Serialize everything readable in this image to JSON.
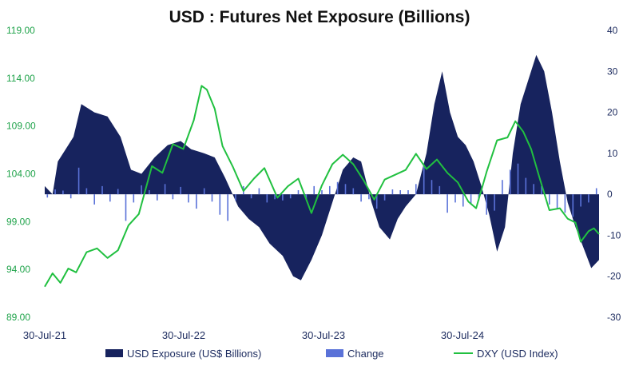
{
  "chart_data": {
    "type": "bar",
    "title": "USD : Futures Net Exposure (Billions)",
    "x_ticks": [
      "30-Jul-21",
      "30-Jul-22",
      "30-Jul-23",
      "30-Jul-24"
    ],
    "y_left": {
      "ticks": [
        "119.00",
        "114.00",
        "109.00",
        "104.00",
        "99.00",
        "94.00",
        "89.00"
      ],
      "ylim": [
        89,
        119
      ]
    },
    "y_right": {
      "ticks": [
        "40",
        "30",
        "20",
        "10",
        "0",
        "-10",
        "-20",
        "-30"
      ],
      "ylim": [
        -30,
        40
      ]
    },
    "x_range": [
      "2021-07-30",
      "2025-08-22"
    ],
    "colors": {
      "exposure": "#17235e",
      "change": "#5a72d8",
      "dxy": "#21c040"
    },
    "series": [
      {
        "name": "USD Exposure (US$ Billions)",
        "axis": "right",
        "kind": "area",
        "points": [
          [
            "2021-07-30",
            2
          ],
          [
            "2021-08-20",
            0
          ],
          [
            "2021-09-03",
            8
          ],
          [
            "2021-09-24",
            11
          ],
          [
            "2021-10-15",
            14
          ],
          [
            "2021-11-05",
            22
          ],
          [
            "2021-12-10",
            20
          ],
          [
            "2022-01-14",
            19
          ],
          [
            "2022-02-18",
            14
          ],
          [
            "2022-03-18",
            6
          ],
          [
            "2022-04-15",
            5
          ],
          [
            "2022-05-20",
            9
          ],
          [
            "2022-06-24",
            12
          ],
          [
            "2022-07-29",
            13
          ],
          [
            "2022-08-26",
            11
          ],
          [
            "2022-09-30",
            10
          ],
          [
            "2022-10-28",
            9
          ],
          [
            "2022-11-25",
            4
          ],
          [
            "2022-12-30",
            -3
          ],
          [
            "2023-01-27",
            -6
          ],
          [
            "2023-02-24",
            -8
          ],
          [
            "2023-03-24",
            -12
          ],
          [
            "2023-04-28",
            -15
          ],
          [
            "2023-05-26",
            -20
          ],
          [
            "2023-06-16",
            -21
          ],
          [
            "2023-07-14",
            -16
          ],
          [
            "2023-08-11",
            -10
          ],
          [
            "2023-09-08",
            -2
          ],
          [
            "2023-10-06",
            6
          ],
          [
            "2023-11-03",
            9
          ],
          [
            "2023-11-24",
            8
          ],
          [
            "2023-12-22",
            -2
          ],
          [
            "2024-01-12",
            -8
          ],
          [
            "2024-02-09",
            -11
          ],
          [
            "2024-03-01",
            -6
          ],
          [
            "2024-03-22",
            -3
          ],
          [
            "2024-04-19",
            0
          ],
          [
            "2024-05-17",
            10
          ],
          [
            "2024-06-07",
            22
          ],
          [
            "2024-06-28",
            30
          ],
          [
            "2024-07-19",
            20
          ],
          [
            "2024-08-09",
            14
          ],
          [
            "2024-08-30",
            12
          ],
          [
            "2024-09-20",
            8
          ],
          [
            "2024-10-11",
            2
          ],
          [
            "2024-11-01",
            -5
          ],
          [
            "2024-11-22",
            -14
          ],
          [
            "2024-12-13",
            -8
          ],
          [
            "2025-01-03",
            10
          ],
          [
            "2025-01-24",
            22
          ],
          [
            "2025-02-14",
            28
          ],
          [
            "2025-03-07",
            34
          ],
          [
            "2025-03-28",
            30
          ],
          [
            "2025-04-18",
            20
          ],
          [
            "2025-05-09",
            8
          ],
          [
            "2025-05-30",
            -2
          ],
          [
            "2025-06-20",
            -8
          ],
          [
            "2025-07-11",
            -13
          ],
          [
            "2025-08-01",
            -18
          ],
          [
            "2025-08-22",
            -16
          ]
        ]
      },
      {
        "name": "Change",
        "axis": "right",
        "kind": "bar",
        "points": [
          [
            "2021-08-06",
            -0.8
          ],
          [
            "2021-08-27",
            1.2
          ],
          [
            "2021-09-17",
            0.9
          ],
          [
            "2021-10-08",
            -1.0
          ],
          [
            "2021-10-29",
            6.5
          ],
          [
            "2021-11-19",
            1.5
          ],
          [
            "2021-12-10",
            -2.5
          ],
          [
            "2021-12-31",
            2.0
          ],
          [
            "2022-01-21",
            -1.8
          ],
          [
            "2022-02-11",
            1.3
          ],
          [
            "2022-03-04",
            -6.5
          ],
          [
            "2022-03-25",
            -2.0
          ],
          [
            "2022-04-15",
            2.2
          ],
          [
            "2022-05-06",
            1.0
          ],
          [
            "2022-05-27",
            -1.5
          ],
          [
            "2022-06-17",
            2.5
          ],
          [
            "2022-07-08",
            -1.2
          ],
          [
            "2022-07-29",
            1.8
          ],
          [
            "2022-08-19",
            -2.0
          ],
          [
            "2022-09-09",
            -3.5
          ],
          [
            "2022-09-30",
            1.5
          ],
          [
            "2022-10-21",
            -1.8
          ],
          [
            "2022-11-11",
            -5.0
          ],
          [
            "2022-12-02",
            -6.5
          ],
          [
            "2022-12-23",
            -1.5
          ],
          [
            "2023-01-13",
            2.0
          ],
          [
            "2023-02-03",
            -1.0
          ],
          [
            "2023-02-24",
            1.5
          ],
          [
            "2023-03-17",
            -2.0
          ],
          [
            "2023-04-07",
            -1.2
          ],
          [
            "2023-04-28",
            -1.5
          ],
          [
            "2023-05-19",
            -1.0
          ],
          [
            "2023-06-09",
            1.0
          ],
          [
            "2023-06-30",
            -1.2
          ],
          [
            "2023-07-21",
            2.0
          ],
          [
            "2023-08-11",
            1.0
          ],
          [
            "2023-09-01",
            2.0
          ],
          [
            "2023-09-22",
            3.0
          ],
          [
            "2023-10-13",
            2.5
          ],
          [
            "2023-11-03",
            1.5
          ],
          [
            "2023-11-24",
            -1.8
          ],
          [
            "2023-12-15",
            -1.2
          ],
          [
            "2024-01-05",
            -3.5
          ],
          [
            "2024-01-26",
            -1.5
          ],
          [
            "2024-02-16",
            1.2
          ],
          [
            "2024-03-08",
            1.0
          ],
          [
            "2024-03-29",
            1.0
          ],
          [
            "2024-04-19",
            2.5
          ],
          [
            "2024-05-10",
            7.0
          ],
          [
            "2024-05-31",
            3.5
          ],
          [
            "2024-06-21",
            2.0
          ],
          [
            "2024-07-12",
            -4.5
          ],
          [
            "2024-08-02",
            -2.0
          ],
          [
            "2024-08-23",
            -3.0
          ],
          [
            "2024-09-13",
            -2.5
          ],
          [
            "2024-10-04",
            -1.5
          ],
          [
            "2024-10-25",
            -5.0
          ],
          [
            "2024-11-15",
            -4.0
          ],
          [
            "2024-12-06",
            3.5
          ],
          [
            "2024-12-27",
            6.0
          ],
          [
            "2025-01-17",
            7.5
          ],
          [
            "2025-02-07",
            4.0
          ],
          [
            "2025-02-28",
            2.5
          ],
          [
            "2025-03-21",
            2.0
          ],
          [
            "2025-04-11",
            -2.5
          ],
          [
            "2025-05-02",
            -3.5
          ],
          [
            "2025-05-23",
            -4.5
          ],
          [
            "2025-06-13",
            -5.5
          ],
          [
            "2025-07-04",
            -3.0
          ],
          [
            "2025-07-25",
            -2.0
          ],
          [
            "2025-08-15",
            1.5
          ]
        ]
      },
      {
        "name": "DXY (USD Index)",
        "axis": "left",
        "kind": "line",
        "points": [
          [
            "2021-07-30",
            92.2
          ],
          [
            "2021-08-20",
            93.6
          ],
          [
            "2021-09-10",
            92.6
          ],
          [
            "2021-10-01",
            94.1
          ],
          [
            "2021-10-22",
            93.7
          ],
          [
            "2021-11-19",
            95.8
          ],
          [
            "2021-12-17",
            96.2
          ],
          [
            "2022-01-14",
            95.2
          ],
          [
            "2022-02-11",
            96.0
          ],
          [
            "2022-03-11",
            98.6
          ],
          [
            "2022-04-08",
            99.8
          ],
          [
            "2022-05-13",
            104.8
          ],
          [
            "2022-06-10",
            104.1
          ],
          [
            "2022-07-08",
            107.1
          ],
          [
            "2022-08-05",
            106.6
          ],
          [
            "2022-09-02",
            109.6
          ],
          [
            "2022-09-23",
            113.2
          ],
          [
            "2022-10-07",
            112.8
          ],
          [
            "2022-10-28",
            110.8
          ],
          [
            "2022-11-18",
            106.9
          ],
          [
            "2022-12-16",
            104.7
          ],
          [
            "2023-01-13",
            102.2
          ],
          [
            "2023-02-10",
            103.5
          ],
          [
            "2023-03-10",
            104.6
          ],
          [
            "2023-04-14",
            101.5
          ],
          [
            "2023-05-12",
            102.7
          ],
          [
            "2023-06-09",
            103.5
          ],
          [
            "2023-07-14",
            99.9
          ],
          [
            "2023-08-11",
            102.8
          ],
          [
            "2023-09-08",
            105.0
          ],
          [
            "2023-10-06",
            106.0
          ],
          [
            "2023-11-03",
            105.0
          ],
          [
            "2023-12-01",
            103.3
          ],
          [
            "2023-12-29",
            101.3
          ],
          [
            "2024-01-26",
            103.4
          ],
          [
            "2024-02-23",
            103.9
          ],
          [
            "2024-03-22",
            104.4
          ],
          [
            "2024-04-19",
            106.1
          ],
          [
            "2024-05-17",
            104.5
          ],
          [
            "2024-06-14",
            105.5
          ],
          [
            "2024-07-12",
            104.1
          ],
          [
            "2024-08-09",
            103.1
          ],
          [
            "2024-09-06",
            101.1
          ],
          [
            "2024-09-27",
            100.4
          ],
          [
            "2024-10-25",
            104.2
          ],
          [
            "2024-11-22",
            107.5
          ],
          [
            "2024-12-20",
            107.8
          ],
          [
            "2025-01-10",
            109.5
          ],
          [
            "2025-01-31",
            108.4
          ],
          [
            "2025-02-21",
            106.6
          ],
          [
            "2025-03-14",
            103.8
          ],
          [
            "2025-04-11",
            100.2
          ],
          [
            "2025-05-09",
            100.4
          ],
          [
            "2025-05-30",
            99.3
          ],
          [
            "2025-06-20",
            98.9
          ],
          [
            "2025-07-04",
            96.9
          ],
          [
            "2025-07-25",
            98.0
          ],
          [
            "2025-08-08",
            98.3
          ],
          [
            "2025-08-22",
            97.7
          ]
        ]
      }
    ],
    "legend": {
      "position": "bottom"
    }
  }
}
